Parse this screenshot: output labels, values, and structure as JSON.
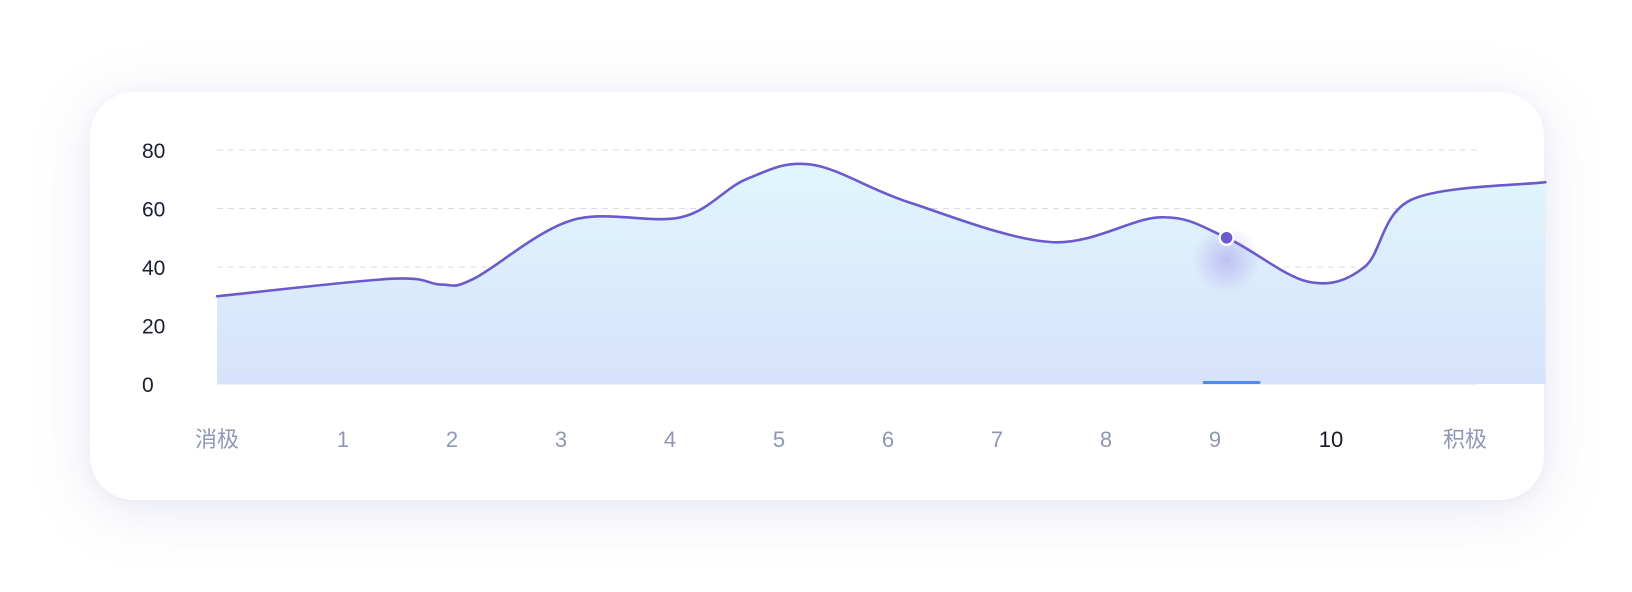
{
  "chart_data": {
    "type": "area",
    "x_labels": [
      "消极",
      "1",
      "2",
      "3",
      "4",
      "5",
      "6",
      "7",
      "8",
      "9",
      "10",
      "积极"
    ],
    "y_ticks": [
      0,
      20,
      40,
      60,
      80
    ],
    "ylim": [
      0,
      80
    ],
    "grid": true,
    "highlighted_x_label": "10",
    "series": [
      {
        "points": [
          {
            "x": 0,
            "y": 30
          },
          {
            "x": 1.45,
            "y": 36
          },
          {
            "x": 1.9,
            "y": 34
          },
          {
            "x": 2.2,
            "y": 36
          },
          {
            "x": 3.1,
            "y": 56
          },
          {
            "x": 4.1,
            "y": 57
          },
          {
            "x": 4.7,
            "y": 70
          },
          {
            "x": 5.3,
            "y": 75
          },
          {
            "x": 6.2,
            "y": 62
          },
          {
            "x": 7.5,
            "y": 48.5
          },
          {
            "x": 8.5,
            "y": 57
          },
          {
            "x": 9.1,
            "y": 50
          },
          {
            "x": 9.8,
            "y": 35
          },
          {
            "x": 10.25,
            "y": 40
          },
          {
            "x": 10.6,
            "y": 63
          },
          {
            "x": 11.6,
            "y": 69
          }
        ],
        "marker": {
          "x": 9.1,
          "y": 50
        }
      }
    ],
    "colors": {
      "line": "#6a5acd",
      "fill_top": "#e0f6fc",
      "fill_bottom": "#d6e2fb",
      "indicator": "#4b8ef0",
      "grid": "#d9dce6"
    }
  }
}
